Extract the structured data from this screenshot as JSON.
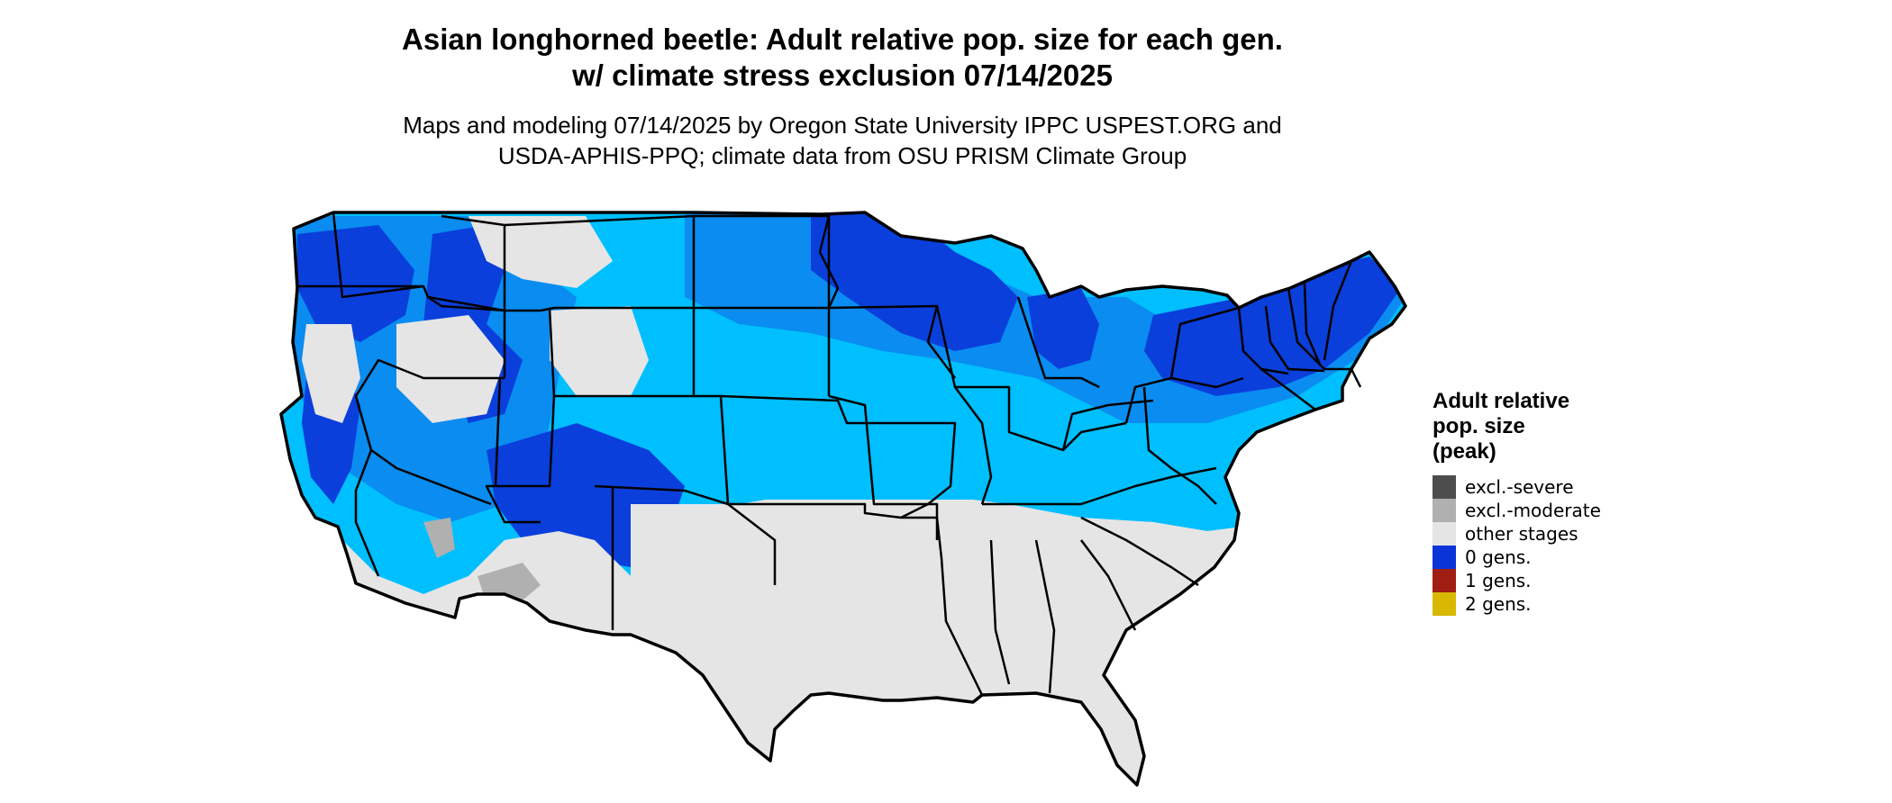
{
  "header": {
    "title_line1": "Asian longhorned beetle: Adult relative pop. size for each gen.",
    "title_line2": "w/ climate stress exclusion 07/14/2025",
    "subtitle_line1": "Maps and modeling 07/14/2025 by Oregon State University IPPC USPEST.ORG and",
    "subtitle_line2": "USDA-APHIS-PPQ; climate data from OSU PRISM Climate Group"
  },
  "map": {
    "region": "Contiguous United States",
    "boundaries": "state lines",
    "colors": {
      "land_default": "#e5e5e5",
      "light_blue": "#00bfff",
      "medium_blue": "#0a8cf0",
      "dark_blue": "#0a3fdc",
      "moderate_gray": "#b0b0b0",
      "border": "#000000"
    },
    "areas": {
      "other_stages": [
        "Southeast",
        "Gulf Coast",
        "Texas",
        "Oklahoma",
        "parts of Southwest",
        "Great Basin lowlands",
        "Central Valley"
      ],
      "moderate_exclusion": [
        "Southwestern Arizona deserts",
        "Southeastern California deserts"
      ],
      "light_blue": [
        "Kansas",
        "Missouri",
        "Illinois",
        "Indiana",
        "Kentucky",
        "Tennessee (north)",
        "Virginia",
        "Nebraska (south)",
        "Colorado plains"
      ],
      "dark_blue": [
        "Minnesota",
        "Wisconsin",
        "Michigan",
        "Dakotas",
        "New England",
        "New York",
        "Pennsylvania",
        "Rocky Mountains",
        "Pacific Northwest",
        "Sierra Nevada"
      ]
    }
  },
  "legend": {
    "title_line1": "Adult relative",
    "title_line2": "pop. size",
    "title_line3": "(peak)",
    "items": [
      {
        "label": "excl.-severe",
        "color": "#4d4d4d"
      },
      {
        "label": "excl.-moderate",
        "color": "#b0b0b0"
      },
      {
        "label": "other stages",
        "color": "#e5e5e5"
      },
      {
        "label": "0 gens.",
        "color": "#0a34d8"
      },
      {
        "label": "1 gens.",
        "color": "#a01e14"
      },
      {
        "label": "2 gens.",
        "color": "#d8b800"
      }
    ]
  }
}
